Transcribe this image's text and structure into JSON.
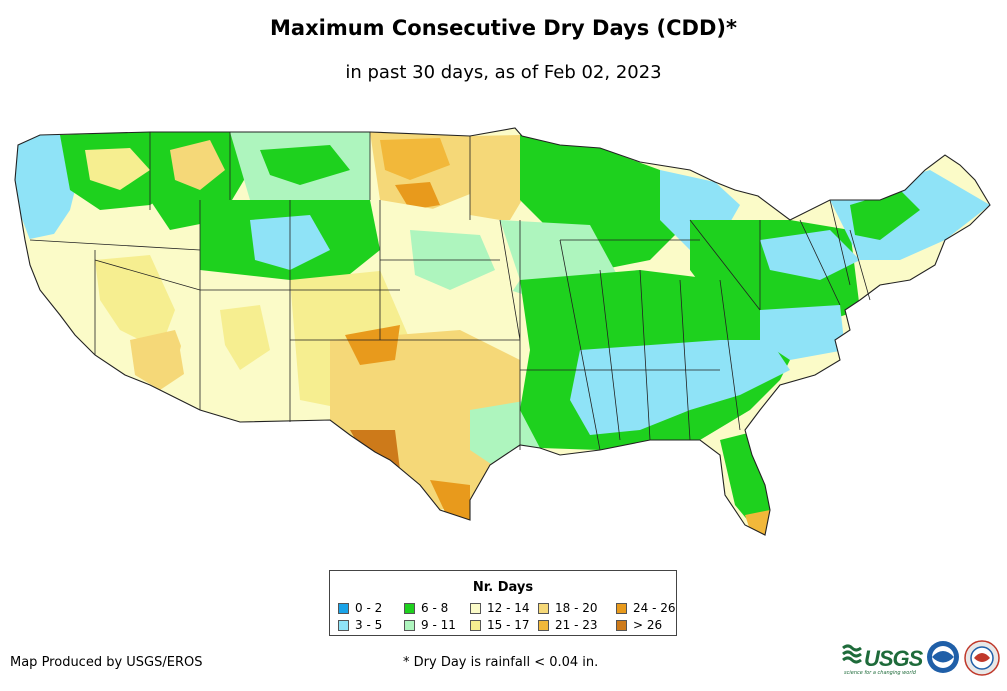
{
  "header": {
    "title": "Maximum Consecutive Dry Days (CDD)*",
    "subtitle": "in past 30 days, as of Feb 02, 2023"
  },
  "legend": {
    "title": "Nr. Days",
    "items": [
      {
        "label": "0 - 2",
        "color": "#1aa3e8"
      },
      {
        "label": "3 - 5",
        "color": "#8fe3f7"
      },
      {
        "label": "6 - 8",
        "color": "#1ed11e"
      },
      {
        "label": "9 - 11",
        "color": "#aef5be"
      },
      {
        "label": "12 - 14",
        "color": "#fbfbc8"
      },
      {
        "label": "15 - 17",
        "color": "#f6ee90"
      },
      {
        "label": "18 - 20",
        "color": "#f5d878"
      },
      {
        "label": "21 - 23",
        "color": "#f2b83a"
      },
      {
        "label": "24 - 26",
        "color": "#e89a1c"
      },
      {
        "label": "> 26",
        "color": "#cd7a1a"
      }
    ]
  },
  "footer": {
    "credit": "Map Produced by USGS/EROS",
    "footnote": "* Dry Day is rainfall < 0.04 in."
  },
  "logos": {
    "usgs_text": "USGS",
    "usgs_tagline": "science for a changing world",
    "noaa_text": "NOAA",
    "nws_text": "NWS"
  },
  "map": {
    "border_color": "#222222",
    "ocean_color": "#ffffff"
  }
}
